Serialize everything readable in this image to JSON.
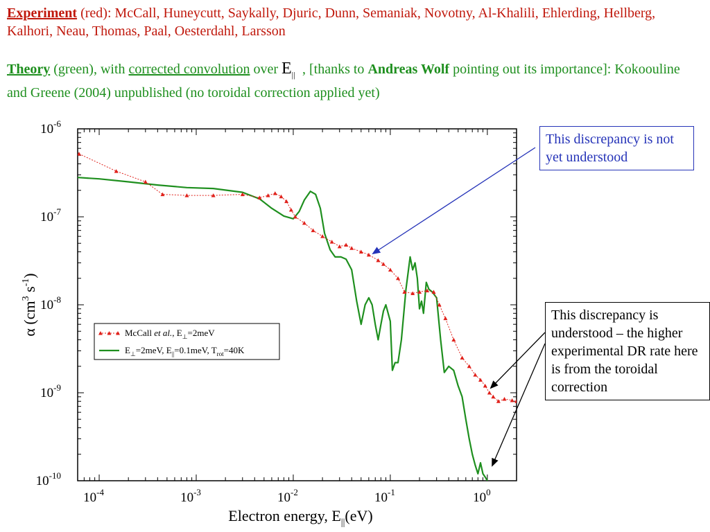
{
  "header": {
    "line1": {
      "label": "Experiment",
      "rest": " (red): McCall, Huneycutt, Saykally, Djuric, Dunn, Semaniak, Novotny, Al-Khalili, Ehlerding, Hellberg, Kalhori, Neau, Thomas, Paal, Oesterdahl, Larsson"
    },
    "line2": {
      "label": "Theory",
      "part1": " (green), with ",
      "link": "corrected convolution",
      "part2": " over ",
      "e_symbol": "E",
      "e_sub": "||",
      "part3": ", [thanks to ",
      "name": "Andreas Wolf",
      "part4": " pointing out its importance]:  Kokoouline and Greene (2004) unpublished (no toroidal correction applied yet)"
    }
  },
  "notes": {
    "note1": "This discrepancy is not yet understood",
    "note2": "This discrepancy is understood – the higher experimental DR rate here is from the toroidal correction"
  },
  "colors": {
    "experiment": "#e0201a",
    "theory": "#1e8f1e",
    "header_red": "#c0180c",
    "note_blue": "#2533b8"
  },
  "chart_data": {
    "type": "line",
    "xscale": "log",
    "yscale": "log",
    "xlim": [
      6e-05,
      2
    ],
    "ylim": [
      1e-10,
      1e-06
    ],
    "xlabel": {
      "text": "Electron energy, E",
      "sub": "||",
      "unit": "(eV)"
    },
    "ylabel": {
      "text": "α (cm",
      "sup1": "3",
      "mid": " s",
      "sup2": "-1",
      "end": ")"
    },
    "xticks": [
      {
        "value": 0.0001,
        "base": "10",
        "exp": "-4"
      },
      {
        "value": 0.001,
        "base": "10",
        "exp": "-3"
      },
      {
        "value": 0.01,
        "base": "10",
        "exp": "-2"
      },
      {
        "value": 0.1,
        "base": "10",
        "exp": "-1"
      },
      {
        "value": 1,
        "base": "10",
        "exp": "0"
      }
    ],
    "yticks": [
      {
        "value": 1e-06,
        "base": "10",
        "exp": "-6"
      },
      {
        "value": 1e-07,
        "base": "10",
        "exp": "-7"
      },
      {
        "value": 1e-08,
        "base": "10",
        "exp": "-8"
      },
      {
        "value": 1e-09,
        "base": "10",
        "exp": "-9"
      },
      {
        "value": 1e-10,
        "base": "10",
        "exp": "-10"
      }
    ],
    "legend": {
      "position": "left-middle",
      "entries": [
        {
          "pre": "McCall ",
          "italic": "et al.",
          "post": ", E",
          "sub": "⊥",
          "tail": "=2meV"
        },
        {
          "pre": "E",
          "sub1": "⊥",
          "mid1": "=2meV, E",
          "sub2": "||",
          "mid2": "=0.1meV, T",
          "sub3": "rot",
          "tail": "=40K"
        }
      ]
    },
    "series": [
      {
        "style": "triangles-dotted",
        "color": "#e0201a",
        "x": [
          6.2e-05,
          0.00015,
          0.0003,
          0.00045,
          0.0008,
          0.0015,
          0.003,
          0.0045,
          0.0055,
          0.0065,
          0.0075,
          0.0085,
          0.0095,
          0.0105,
          0.013,
          0.016,
          0.02,
          0.025,
          0.03,
          0.035,
          0.04,
          0.05,
          0.06,
          0.075,
          0.085,
          0.1,
          0.12,
          0.14,
          0.17,
          0.2,
          0.24,
          0.28,
          0.32,
          0.37,
          0.45,
          0.55,
          0.65,
          0.75,
          0.85,
          0.95,
          1.05,
          1.15,
          1.3,
          1.5,
          1.8,
          2.0
        ],
        "y": [
          5.2e-07,
          3.3e-07,
          2.5e-07,
          1.8e-07,
          1.75e-07,
          1.75e-07,
          1.8e-07,
          1.65e-07,
          1.75e-07,
          1.85e-07,
          1.7e-07,
          1.5e-07,
          1.2e-07,
          1e-07,
          8.5e-08,
          7e-08,
          6e-08,
          5.2e-08,
          4.6e-08,
          4.8e-08,
          4.4e-08,
          4e-08,
          3.7e-08,
          3.2e-08,
          2.9e-08,
          2.5e-08,
          2e-08,
          1.4e-08,
          1.35e-08,
          1.4e-08,
          1.45e-08,
          1.4e-08,
          1e-08,
          7e-09,
          4e-09,
          2.5e-09,
          2e-09,
          1.6e-09,
          1.4e-09,
          1.2e-09,
          1e-09,
          9e-10,
          8e-10,
          8.5e-10,
          8.2e-10,
          8e-10
        ]
      },
      {
        "style": "solid",
        "color": "#1e8f1e",
        "x": [
          6e-05,
          0.0001,
          0.0002,
          0.0004,
          0.0008,
          0.0015,
          0.003,
          0.0045,
          0.006,
          0.008,
          0.01,
          0.0115,
          0.013,
          0.015,
          0.017,
          0.019,
          0.021,
          0.024,
          0.027,
          0.031,
          0.035,
          0.04,
          0.045,
          0.05,
          0.055,
          0.06,
          0.065,
          0.07,
          0.075,
          0.08,
          0.085,
          0.09,
          0.1,
          0.105,
          0.112,
          0.12,
          0.13,
          0.145,
          0.16,
          0.17,
          0.18,
          0.19,
          0.2,
          0.21,
          0.22,
          0.235,
          0.25,
          0.27,
          0.3,
          0.33,
          0.36,
          0.4,
          0.45,
          0.5,
          0.55,
          0.6,
          0.65,
          0.7,
          0.75,
          0.8,
          0.85,
          0.9,
          0.95,
          1.0
        ],
        "y": [
          2.8e-07,
          2.7e-07,
          2.5e-07,
          2.3e-07,
          2.15e-07,
          2.1e-07,
          1.9e-07,
          1.6e-07,
          1.25e-07,
          1.02e-07,
          9.5e-08,
          1.15e-07,
          1.55e-07,
          1.95e-07,
          1.8e-07,
          1.25e-07,
          6.5e-08,
          4.2e-08,
          3.5e-08,
          3.5e-08,
          3.3e-08,
          2.5e-08,
          1.1e-08,
          6e-09,
          1e-08,
          1.2e-08,
          1e-08,
          6e-09,
          4e-09,
          6e-09,
          8.5e-09,
          1e-08,
          6.5e-09,
          1.8e-09,
          2.2e-09,
          2.2e-09,
          4e-09,
          1.5e-08,
          3.5e-08,
          2.5e-08,
          3e-08,
          2e-08,
          9e-09,
          1.1e-08,
          8e-09,
          1.8e-08,
          1.5e-08,
          1.4e-08,
          1.2e-08,
          4e-09,
          1.7e-09,
          2e-09,
          1.8e-09,
          1.2e-09,
          9e-10,
          5e-10,
          3e-10,
          2e-10,
          1.5e-10,
          1.2e-10,
          1.6e-10,
          1.2e-10,
          1.1e-10,
          1e-10
        ]
      }
    ]
  }
}
